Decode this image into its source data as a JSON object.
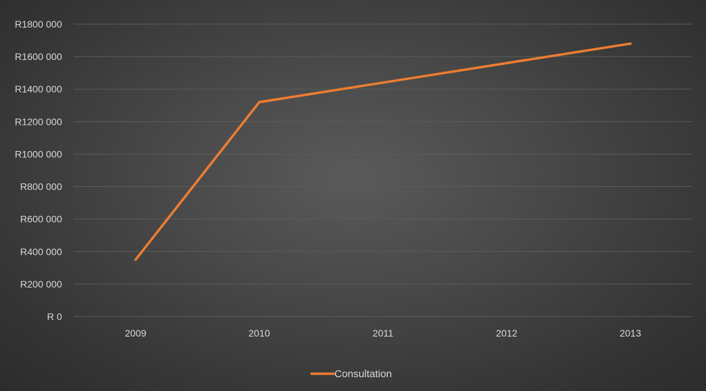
{
  "chart_data": {
    "type": "line",
    "title": "",
    "xlabel": "",
    "ylabel": "",
    "categories": [
      "2009",
      "2010",
      "2011",
      "2012",
      "2013"
    ],
    "series": [
      {
        "name": "Consultation",
        "values": [
          350000,
          1320000,
          1440000,
          1560000,
          1680000
        ],
        "color": "#ed7d31"
      }
    ],
    "ylim": [
      0,
      1800000
    ],
    "y_ticks": [
      {
        "value": 0,
        "label": "R 0"
      },
      {
        "value": 200000,
        "label": "R200 000"
      },
      {
        "value": 400000,
        "label": "R400 000"
      },
      {
        "value": 600000,
        "label": "R600 000"
      },
      {
        "value": 800000,
        "label": "R800 000"
      },
      {
        "value": 1000000,
        "label": "R1000 000"
      },
      {
        "value": 1200000,
        "label": "R1200 000"
      },
      {
        "value": 1400000,
        "label": "R1400 000"
      },
      {
        "value": 1600000,
        "label": "R1600 000"
      },
      {
        "value": 1800000,
        "label": "R1800 000"
      }
    ],
    "grid": true,
    "legend_position": "bottom",
    "gridline_color": "#5c5c5c"
  }
}
